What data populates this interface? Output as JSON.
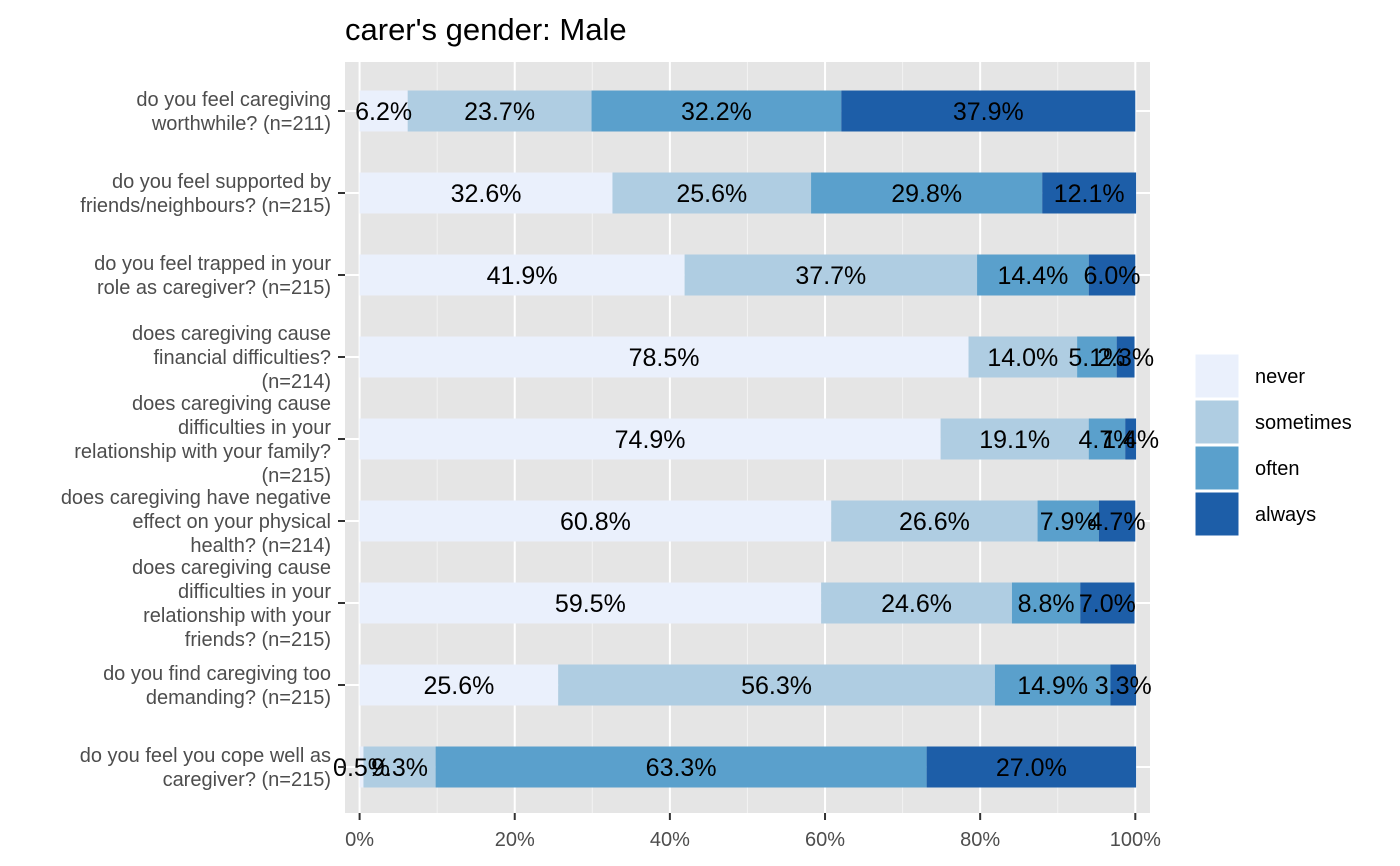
{
  "chart_data": {
    "type": "bar",
    "orientation": "horizontal",
    "stacked": "percent",
    "title": "carer's gender: Male",
    "xlabel": "",
    "ylabel": "",
    "xlim": [
      0,
      100
    ],
    "x_ticks": [
      "0%",
      "20%",
      "40%",
      "60%",
      "80%",
      "100%"
    ],
    "grid": true,
    "legend_position": "right",
    "categories": [
      "do you feel caregiving worthwhile? (n=211)",
      "do you feel supported by friends/neighbours? (n=215)",
      "do you feel trapped in your role as caregiver? (n=215)",
      "does caregiving cause financial difficulties? (n=214)",
      "does caregiving cause difficulties in your relationship with your family? (n=215)",
      "does caregiving have negative effect on your physical health? (n=214)",
      "does caregiving cause difficulties in your relationship with your friends? (n=215)",
      "do you find caregiving too demanding? (n=215)",
      "do you feel you cope well as caregiver? (n=215)"
    ],
    "category_lines": [
      [
        "do you feel caregiving",
        "worthwhile? (n=211)"
      ],
      [
        "do you feel supported by",
        "friends/neighbours? (n=215)"
      ],
      [
        "do you feel trapped in your",
        "role as caregiver? (n=215)"
      ],
      [
        "does caregiving cause",
        "financial difficulties?",
        "(n=214)"
      ],
      [
        "does caregiving cause",
        "difficulties in your",
        "relationship with your family?",
        "(n=215)"
      ],
      [
        "does caregiving have negative",
        "effect on your physical",
        "health? (n=214)"
      ],
      [
        "does caregiving cause",
        "difficulties in your",
        "relationship with your",
        "friends? (n=215)"
      ],
      [
        "do you find caregiving too",
        "demanding? (n=215)"
      ],
      [
        "do you feel you cope well as",
        "caregiver? (n=215)"
      ]
    ],
    "series": [
      {
        "name": "never",
        "color": "#eaf0fc",
        "values": [
          6.2,
          32.6,
          41.9,
          78.5,
          74.9,
          60.8,
          59.5,
          25.6,
          0.5
        ]
      },
      {
        "name": "sometimes",
        "color": "#afcde2",
        "values": [
          23.7,
          25.6,
          37.7,
          14.0,
          19.1,
          26.6,
          24.6,
          56.3,
          9.3
        ]
      },
      {
        "name": "often",
        "color": "#5aa0cc",
        "values": [
          32.2,
          29.8,
          14.4,
          5.1,
          4.7,
          7.9,
          8.8,
          14.9,
          63.3
        ]
      },
      {
        "name": "always",
        "color": "#1d5ea8",
        "values": [
          37.9,
          12.1,
          6.0,
          2.3,
          1.4,
          4.7,
          7.0,
          3.3,
          27.0
        ]
      }
    ],
    "labels": [
      [
        "6.2%",
        "23.7%",
        "32.2%",
        "37.9%"
      ],
      [
        "32.6%",
        "25.6%",
        "29.8%",
        "12.1%"
      ],
      [
        "41.9%",
        "37.7%",
        "14.4%",
        "6.0%"
      ],
      [
        "78.5%",
        "14.0%",
        "5.1%",
        "2.3%"
      ],
      [
        "74.9%",
        "19.1%",
        "4.7%",
        "1.4%"
      ],
      [
        "60.8%",
        "26.6%",
        "7.9%",
        "4.7%"
      ],
      [
        "59.5%",
        "24.6%",
        "8.8%",
        "7.0%"
      ],
      [
        "25.6%",
        "56.3%",
        "14.9%",
        "3.3%"
      ],
      [
        "0.5%",
        "9.3%",
        "63.3%",
        "27.0%"
      ]
    ]
  }
}
